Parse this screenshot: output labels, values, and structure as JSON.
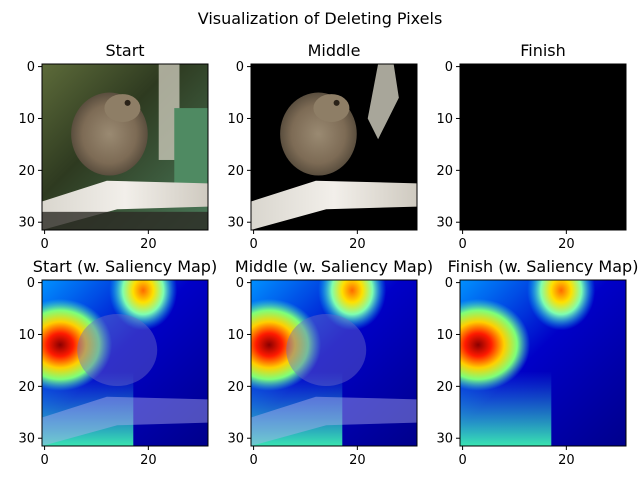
{
  "figure": {
    "title": "Visualization of Deleting Pixels"
  },
  "chart_data": [
    {
      "type": "image",
      "title": "Start",
      "xticks": [
        "0",
        "20"
      ],
      "yticks": [
        "0",
        "10",
        "20",
        "30"
      ],
      "xlim": [
        -0.5,
        31.5
      ],
      "ylim": [
        31.5,
        -0.5
      ],
      "content": "original low-resolution photo of a frog on a branch",
      "pixels_deleted": "none"
    },
    {
      "type": "image",
      "title": "Middle",
      "xticks": [
        "0",
        "20"
      ],
      "yticks": [
        "0",
        "10",
        "20",
        "30"
      ],
      "xlim": [
        -0.5,
        31.5
      ],
      "ylim": [
        31.5,
        -0.5
      ],
      "content": "same photo with most pixels set to black; frog and branch remain",
      "pixels_deleted": "partial"
    },
    {
      "type": "image",
      "title": "Finish",
      "xticks": [
        "0",
        "20"
      ],
      "yticks": [
        "0",
        "10",
        "20",
        "30"
      ],
      "xlim": [
        -0.5,
        31.5
      ],
      "ylim": [
        31.5,
        -0.5
      ],
      "content": "all pixels black",
      "pixels_deleted": "all"
    },
    {
      "type": "heatmap",
      "title": "Start (w. Saliency Map)",
      "xticks": [
        "0",
        "20"
      ],
      "yticks": [
        "0",
        "10",
        "20",
        "30"
      ],
      "xlim": [
        -0.5,
        31.5
      ],
      "ylim": [
        31.5,
        -0.5
      ],
      "colormap": "jet",
      "overlay": "saliency map blended over Start image",
      "hotspots": [
        {
          "x": 3,
          "y": 12,
          "level": "high"
        },
        {
          "x": 19,
          "y": 1.5,
          "level": "high"
        }
      ]
    },
    {
      "type": "heatmap",
      "title": "Middle (w. Saliency Map)",
      "xticks": [
        "0",
        "20"
      ],
      "yticks": [
        "0",
        "10",
        "20",
        "30"
      ],
      "xlim": [
        -0.5,
        31.5
      ],
      "ylim": [
        31.5,
        -0.5
      ],
      "colormap": "jet",
      "overlay": "saliency map blended over Middle image",
      "hotspots": [
        {
          "x": 3,
          "y": 12,
          "level": "high"
        },
        {
          "x": 19,
          "y": 1.5,
          "level": "high"
        }
      ]
    },
    {
      "type": "heatmap",
      "title": "Finish (w. Saliency Map)",
      "xticks": [
        "0",
        "20"
      ],
      "yticks": [
        "0",
        "10",
        "20",
        "30"
      ],
      "xlim": [
        -0.5,
        31.5
      ],
      "ylim": [
        31.5,
        -0.5
      ],
      "colormap": "jet",
      "overlay": "saliency map alone (image fully black)",
      "hotspots": [
        {
          "x": 3,
          "y": 12,
          "level": "high"
        },
        {
          "x": 19,
          "y": 1.5,
          "level": "high"
        }
      ]
    }
  ],
  "colors": {
    "black": "#000000",
    "sky_dark": "#2b3a1e",
    "frog": "#8c7a62",
    "branch": "#e8e4dc",
    "leaf": "#4f7a55",
    "jet_low": "#00007f",
    "jet_mid": "#40e0a0",
    "jet_high": "#ff0000"
  }
}
